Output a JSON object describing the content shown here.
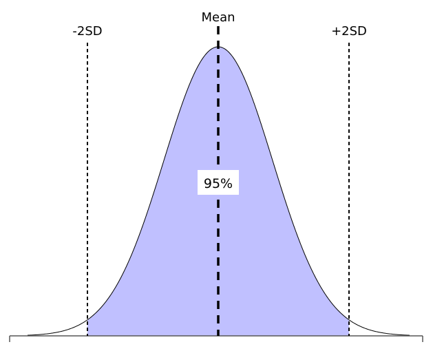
{
  "labels": {
    "minus_2sd": "-2SD",
    "mean": "Mean",
    "plus_2sd": "+2SD",
    "area_percent": "95%"
  },
  "colors": {
    "fill": "#c0c0ff",
    "curve": "#000000",
    "axis": "#555555"
  }
}
